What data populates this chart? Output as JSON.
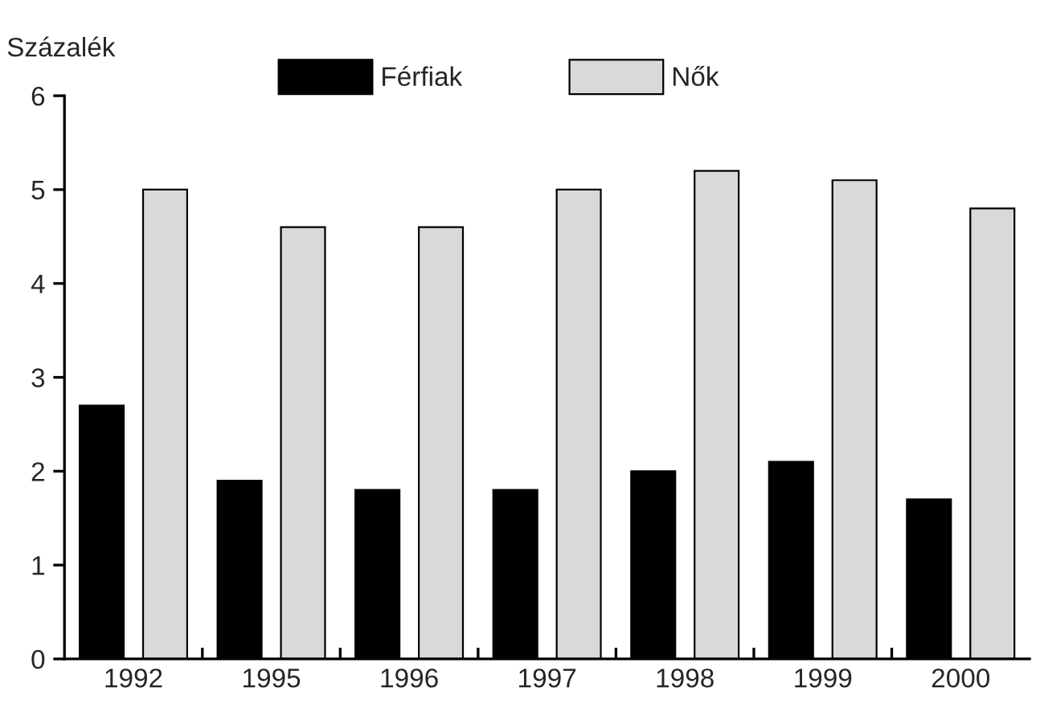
{
  "chart_data": {
    "type": "bar",
    "ylabel": "Százalék",
    "categories": [
      "1992",
      "1995",
      "1996",
      "1997",
      "1998",
      "1999",
      "2000"
    ],
    "series": [
      {
        "name": "Férfiak",
        "color": "#000000",
        "values": [
          2.7,
          1.9,
          1.8,
          1.8,
          2.0,
          2.1,
          1.7
        ]
      },
      {
        "name": "Nők",
        "color": "#d9d9d9",
        "values": [
          5.0,
          4.6,
          4.6,
          5.0,
          5.2,
          5.1,
          4.8
        ]
      }
    ],
    "ylim": [
      0,
      6
    ],
    "yticks": [
      0,
      1,
      2,
      3,
      4,
      5,
      6
    ],
    "grid": false,
    "legend": "top"
  }
}
